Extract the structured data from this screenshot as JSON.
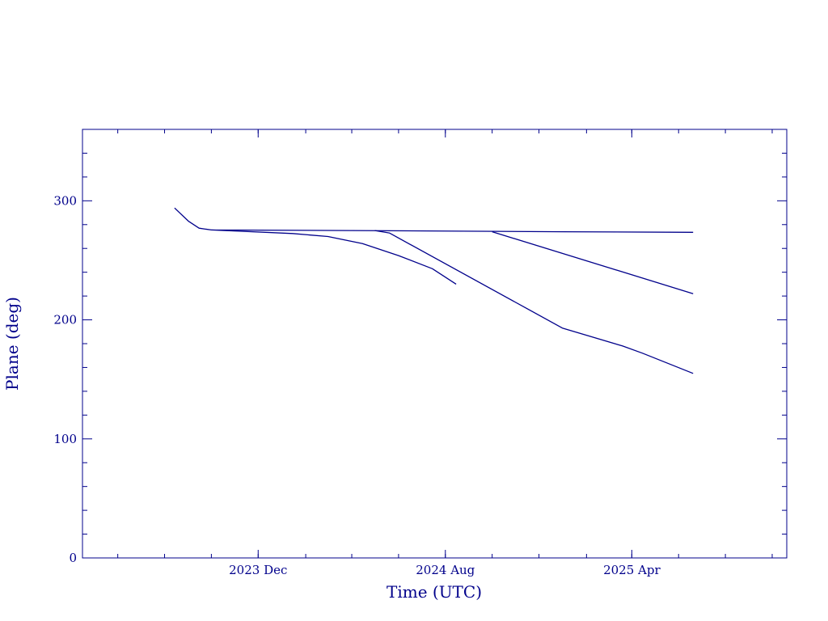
{
  "chart_data": {
    "type": "line",
    "title": "",
    "xlabel": "Time (UTC)",
    "ylabel": "Plane (deg)",
    "xlim": [
      "2023-04-16",
      "2025-10-20"
    ],
    "ylim": [
      0,
      360
    ],
    "x_ticks": [
      {
        "date": "2023-12-01",
        "label": "2023 Dec"
      },
      {
        "date": "2024-08-01",
        "label": "2024 Aug"
      },
      {
        "date": "2025-04-01",
        "label": "2025 Apr"
      }
    ],
    "y_ticks": [
      {
        "value": 0,
        "label": "0"
      },
      {
        "value": 100,
        "label": "100"
      },
      {
        "value": 200,
        "label": "200"
      },
      {
        "value": 300,
        "label": "300"
      }
    ],
    "grid": false,
    "line_color": "#00008b",
    "series": [
      {
        "points": [
          [
            "2023-08-14",
            294
          ],
          [
            "2023-09-01",
            283
          ],
          [
            "2023-09-15",
            277
          ],
          [
            "2023-10-01",
            275.5
          ],
          [
            "2024-04-01",
            275
          ],
          [
            "2025-01-01",
            274
          ],
          [
            "2025-06-20",
            273.5
          ]
        ]
      },
      {
        "points": [
          [
            "2023-10-01",
            275.5
          ],
          [
            "2024-01-15",
            272.5
          ],
          [
            "2024-03-01",
            270
          ],
          [
            "2024-04-15",
            264
          ],
          [
            "2024-06-01",
            254
          ],
          [
            "2024-07-15",
            243
          ],
          [
            "2024-08-15",
            230
          ]
        ]
      },
      {
        "points": [
          [
            "2024-05-01",
            275
          ],
          [
            "2024-05-20",
            273
          ],
          [
            "2025-01-01",
            193
          ],
          [
            "2025-03-20",
            178
          ],
          [
            "2025-04-15",
            172
          ],
          [
            "2025-06-20",
            155
          ]
        ]
      },
      {
        "points": [
          [
            "2024-10-01",
            274
          ],
          [
            "2025-06-20",
            222
          ]
        ]
      }
    ]
  }
}
